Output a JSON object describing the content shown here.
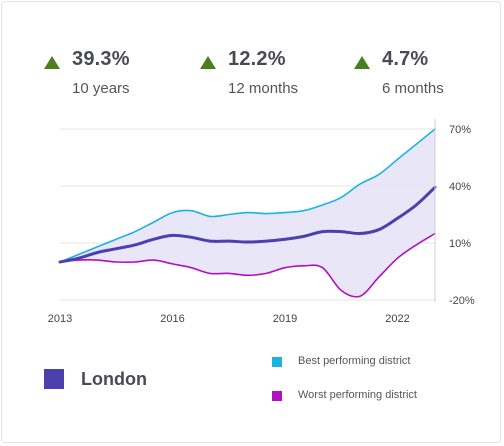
{
  "stats": [
    {
      "value": "39.3%",
      "period": "10 years",
      "icon": "up-triangle-icon"
    },
    {
      "value": "12.2%",
      "period": "12 months",
      "icon": "up-triangle-icon"
    },
    {
      "value": "4.7%",
      "period": "6 months",
      "icon": "up-triangle-icon"
    }
  ],
  "colors": {
    "main": "#4c3fae",
    "best": "#1ab4e0",
    "worst": "#b010c0",
    "band": "#e5e3f6",
    "up": "#4a7f1f"
  },
  "legend": {
    "main": "London",
    "best": "Best performing district",
    "worst": "Worst performing district"
  },
  "chart_data": {
    "type": "line",
    "x_ticks": [
      "2013",
      "2016",
      "2019",
      "2022"
    ],
    "y_ticks": [
      "70%",
      "40%",
      "10%",
      "-20%"
    ],
    "ylim": [
      -20,
      70
    ],
    "xlim": [
      2013,
      2023
    ],
    "grid": true,
    "series": [
      {
        "name": "Best performing district",
        "key": "best",
        "x": [
          2013,
          2013.5,
          2014,
          2014.5,
          2015,
          2015.5,
          2016,
          2016.5,
          2017,
          2017.5,
          2018,
          2018.5,
          2019,
          2019.5,
          2020,
          2020.5,
          2021,
          2021.5,
          2022,
          2022.5,
          2023
        ],
        "y": [
          0,
          4,
          8,
          12,
          16,
          21,
          26,
          27,
          24,
          25,
          26,
          25.5,
          26,
          27,
          30,
          34,
          41,
          46,
          54,
          62,
          70
        ]
      },
      {
        "name": "London",
        "key": "main",
        "x": [
          2013,
          2013.5,
          2014,
          2014.5,
          2015,
          2015.5,
          2016,
          2016.5,
          2017,
          2017.5,
          2018,
          2018.5,
          2019,
          2019.5,
          2020,
          2020.5,
          2021,
          2021.5,
          2022,
          2022.5,
          2023
        ],
        "y": [
          0,
          2,
          5,
          7,
          9,
          12,
          14,
          13,
          11,
          11,
          10.5,
          11,
          12,
          13.5,
          16,
          16,
          15,
          17,
          23,
          30,
          39.3
        ]
      },
      {
        "name": "Worst performing district",
        "key": "worst",
        "x": [
          2013,
          2013.5,
          2014,
          2014.5,
          2015,
          2015.5,
          2016,
          2016.5,
          2017,
          2017.5,
          2018,
          2018.5,
          2019,
          2019.5,
          2020,
          2020.5,
          2021,
          2021.5,
          2022,
          2022.5,
          2023
        ],
        "y": [
          0,
          1,
          1,
          0,
          0,
          1,
          -1,
          -3,
          -6,
          -6,
          -7,
          -6,
          -3,
          -2,
          -3,
          -15,
          -18,
          -8,
          2,
          9,
          15
        ]
      }
    ]
  }
}
